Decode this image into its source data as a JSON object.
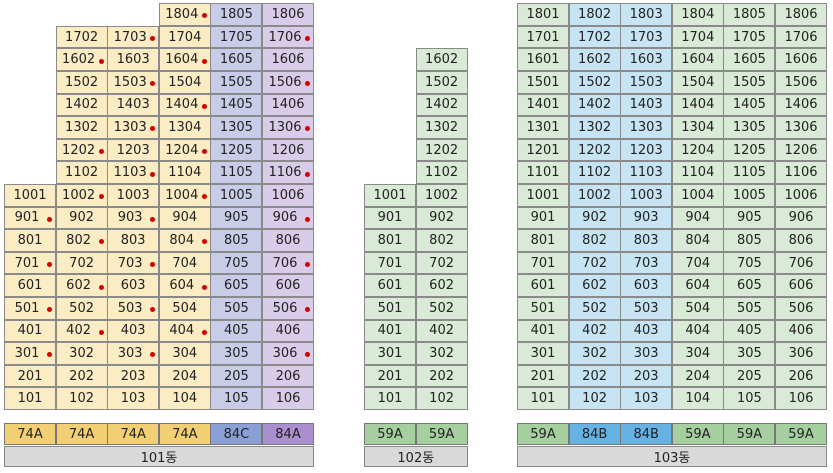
{
  "colors": {
    "74A": "#fbecc4",
    "84C": "#c9cce8",
    "84A": "#d8cce8",
    "59A": "#d9ead6",
    "84B": "#c6e4f3"
  },
  "type_colors": {
    "74A": "#f2cf72",
    "84C": "#8a9fd3",
    "84A": "#a98fd0",
    "59A": "#a6cfa0",
    "84B": "#65b2e3"
  },
  "buildings": [
    {
      "name": "101동",
      "lines": [
        {
          "type": "74A",
          "units": [
            "101",
            "201",
            "301",
            "401",
            "501",
            "601",
            "701",
            "801",
            "901",
            "1001"
          ],
          "dots": [
            "301",
            "501",
            "701",
            "901"
          ]
        },
        {
          "type": "74A",
          "units": [
            "102",
            "202",
            "302",
            "402",
            "502",
            "602",
            "702",
            "802",
            "902",
            "1002",
            "1102",
            "1202",
            "1302",
            "1402",
            "1502",
            "1602",
            "1702"
          ],
          "dots": [
            "402",
            "602",
            "802",
            "1002",
            "1202",
            "1602"
          ]
        },
        {
          "type": "74A",
          "units": [
            "103",
            "203",
            "303",
            "403",
            "503",
            "603",
            "703",
            "803",
            "903",
            "1003",
            "1103",
            "1203",
            "1303",
            "1403",
            "1503",
            "1603",
            "1703"
          ],
          "dots": [
            "303",
            "503",
            "703",
            "903",
            "1103",
            "1303",
            "1503",
            "1703"
          ]
        },
        {
          "type": "74A",
          "units": [
            "104",
            "204",
            "304",
            "404",
            "504",
            "604",
            "704",
            "804",
            "904",
            "1004",
            "1104",
            "1204",
            "1304",
            "1404",
            "1504",
            "1604",
            "1704",
            "1804"
          ],
          "dots": [
            "404",
            "604",
            "804",
            "1004",
            "1204",
            "1404",
            "1604",
            "1804"
          ]
        },
        {
          "type": "84C",
          "units": [
            "105",
            "205",
            "305",
            "405",
            "505",
            "605",
            "705",
            "805",
            "905",
            "1005",
            "1105",
            "1205",
            "1305",
            "1405",
            "1505",
            "1605",
            "1705",
            "1805"
          ],
          "dots": []
        },
        {
          "type": "84A",
          "units": [
            "106",
            "206",
            "306",
            "406",
            "506",
            "606",
            "706",
            "806",
            "906",
            "1006",
            "1106",
            "1206",
            "1306",
            "1406",
            "1506",
            "1606",
            "1706",
            "1806"
          ],
          "dots": [
            "306",
            "506",
            "706",
            "906",
            "1106",
            "1306",
            "1506",
            "1706"
          ]
        }
      ]
    },
    {
      "name": "102동",
      "lines": [
        {
          "type": "59A",
          "units": [
            "101",
            "201",
            "301",
            "401",
            "501",
            "601",
            "701",
            "801",
            "901",
            "1001"
          ],
          "dots": []
        },
        {
          "type": "59A",
          "units": [
            "102",
            "202",
            "302",
            "402",
            "502",
            "602",
            "702",
            "802",
            "902",
            "1002",
            "1102",
            "1202",
            "1302",
            "1402",
            "1502",
            "1602"
          ],
          "dots": []
        }
      ]
    },
    {
      "name": "103동",
      "lines": [
        {
          "type": "59A",
          "units": [
            "101",
            "201",
            "301",
            "401",
            "501",
            "601",
            "701",
            "801",
            "901",
            "1001",
            "1101",
            "1201",
            "1301",
            "1401",
            "1501",
            "1601",
            "1701",
            "1801"
          ],
          "dots": []
        },
        {
          "type": "84B",
          "units": [
            "102",
            "202",
            "302",
            "402",
            "502",
            "602",
            "702",
            "802",
            "902",
            "1002",
            "1102",
            "1202",
            "1302",
            "1402",
            "1502",
            "1602",
            "1702",
            "1802"
          ],
          "dots": []
        },
        {
          "type": "84B",
          "units": [
            "103",
            "203",
            "303",
            "403",
            "503",
            "603",
            "703",
            "803",
            "903",
            "1003",
            "1103",
            "1203",
            "1303",
            "1403",
            "1503",
            "1603",
            "1703",
            "1803"
          ],
          "dots": []
        },
        {
          "type": "59A",
          "units": [
            "104",
            "204",
            "304",
            "404",
            "504",
            "604",
            "704",
            "804",
            "904",
            "1004",
            "1104",
            "1204",
            "1304",
            "1404",
            "1504",
            "1604",
            "1704",
            "1804"
          ],
          "dots": []
        },
        {
          "type": "59A",
          "units": [
            "105",
            "205",
            "305",
            "405",
            "505",
            "605",
            "705",
            "805",
            "905",
            "1005",
            "1105",
            "1205",
            "1305",
            "1405",
            "1505",
            "1605",
            "1705",
            "1805"
          ],
          "dots": []
        },
        {
          "type": "59A",
          "units": [
            "106",
            "206",
            "306",
            "406",
            "506",
            "606",
            "706",
            "806",
            "906",
            "1006",
            "1106",
            "1206",
            "1306",
            "1406",
            "1506",
            "1606",
            "1706",
            "1806"
          ],
          "dots": []
        }
      ]
    }
  ]
}
